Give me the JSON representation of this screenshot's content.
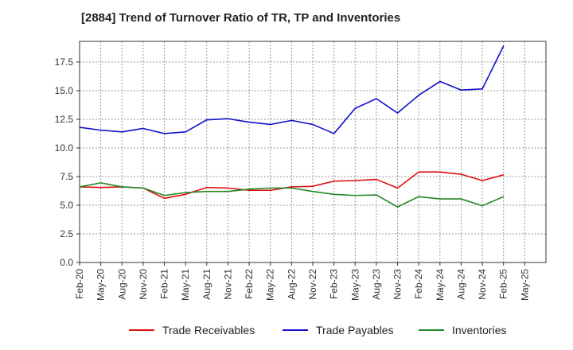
{
  "chart_data": {
    "type": "line",
    "title": "[2884]  Trend of Turnover Ratio of TR, TP and Inventories",
    "xlabel": "",
    "ylabel": "",
    "x": [
      "Feb-20",
      "May-20",
      "Aug-20",
      "Nov-20",
      "Feb-21",
      "May-21",
      "Aug-21",
      "Nov-21",
      "Feb-22",
      "May-22",
      "Aug-22",
      "Nov-22",
      "Feb-23",
      "May-23",
      "Aug-23",
      "Nov-23",
      "Feb-24",
      "May-24",
      "Aug-24",
      "Nov-24",
      "Feb-25"
    ],
    "x_tick_labels": [
      "Feb-20",
      "May-20",
      "Aug-20",
      "Nov-20",
      "Feb-21",
      "May-21",
      "Aug-21",
      "Nov-21",
      "Feb-22",
      "May-22",
      "Aug-22",
      "Nov-22",
      "Feb-23",
      "May-23",
      "Aug-23",
      "Nov-23",
      "Feb-24",
      "May-24",
      "Aug-24",
      "Nov-24",
      "Feb-25",
      "May-25"
    ],
    "ylim": [
      0,
      19.3
    ],
    "y_ticks": [
      0.0,
      2.5,
      5.0,
      7.5,
      10.0,
      12.5,
      15.0,
      17.5
    ],
    "y_tick_labels": [
      "0.0",
      "2.5",
      "5.0",
      "7.5",
      "10.0",
      "12.5",
      "15.0",
      "17.5"
    ],
    "grid": true,
    "legend_position": "bottom",
    "series": [
      {
        "name": "Trade Receivables",
        "color": "#dd1111",
        "values": [
          6.6,
          6.55,
          6.6,
          6.5,
          5.6,
          5.95,
          6.55,
          6.5,
          6.3,
          6.3,
          6.6,
          6.65,
          7.1,
          7.15,
          7.25,
          6.5,
          7.9,
          7.9,
          7.7,
          7.15,
          7.65
        ]
      },
      {
        "name": "Trade Payables",
        "color": "#1111cc",
        "values": [
          11.8,
          11.55,
          11.4,
          11.7,
          11.25,
          11.4,
          12.45,
          12.55,
          12.25,
          12.05,
          12.4,
          12.05,
          11.25,
          13.45,
          14.3,
          13.05,
          14.6,
          15.8,
          15.05,
          15.15,
          18.9
        ]
      },
      {
        "name": "Inventories",
        "color": "#228822",
        "values": [
          6.6,
          6.95,
          6.6,
          6.5,
          5.85,
          6.1,
          6.2,
          6.2,
          6.4,
          6.5,
          6.5,
          6.2,
          5.95,
          5.85,
          5.9,
          4.85,
          5.75,
          5.55,
          5.55,
          4.95,
          5.75
        ]
      }
    ]
  }
}
